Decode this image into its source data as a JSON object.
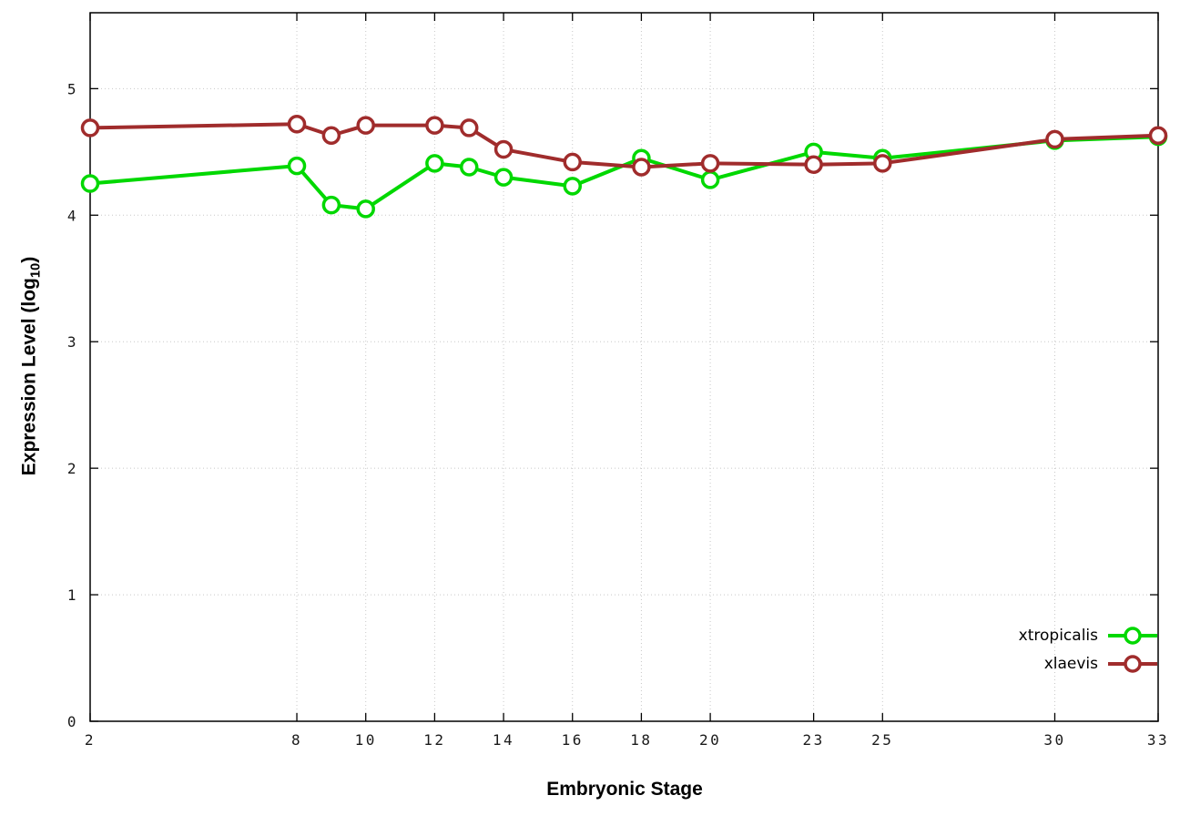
{
  "chart_data": {
    "type": "line",
    "title": "",
    "xlabel": "Embryonic Stage",
    "ylabel": "Expression Level (log10)",
    "ylabel_parts": {
      "main": "Expression Level (log",
      "sub": "10",
      "end": ")"
    },
    "xlim": [
      2,
      33
    ],
    "ylim": [
      0,
      5.6
    ],
    "x_ticks": [
      2,
      8,
      10,
      12,
      14,
      16,
      18,
      20,
      23,
      25,
      30,
      33
    ],
    "y_ticks": [
      0,
      1,
      2,
      3,
      4,
      5
    ],
    "grid": true,
    "legend_position": "inside-bottom-right",
    "x": [
      2,
      8,
      9,
      10,
      12,
      13,
      14,
      16,
      18,
      20,
      23,
      25,
      30,
      33
    ],
    "series": [
      {
        "name": "xtropicalis",
        "color": "#00d800",
        "values": [
          4.25,
          4.39,
          4.08,
          4.05,
          4.41,
          4.38,
          4.3,
          4.23,
          4.45,
          4.28,
          4.5,
          4.45,
          4.59,
          4.62
        ]
      },
      {
        "name": "xlaevis",
        "color": "#a02c2c",
        "values": [
          4.69,
          4.72,
          4.63,
          4.71,
          4.71,
          4.69,
          4.52,
          4.42,
          4.38,
          4.41,
          4.4,
          4.41,
          4.6,
          4.63
        ]
      }
    ],
    "appearance": {
      "background": "#ffffff",
      "axis_color": "#000000",
      "grid_color": "#c8c8c8",
      "tick_label_color": "#1a1a1a",
      "marker": "open-circle"
    }
  }
}
